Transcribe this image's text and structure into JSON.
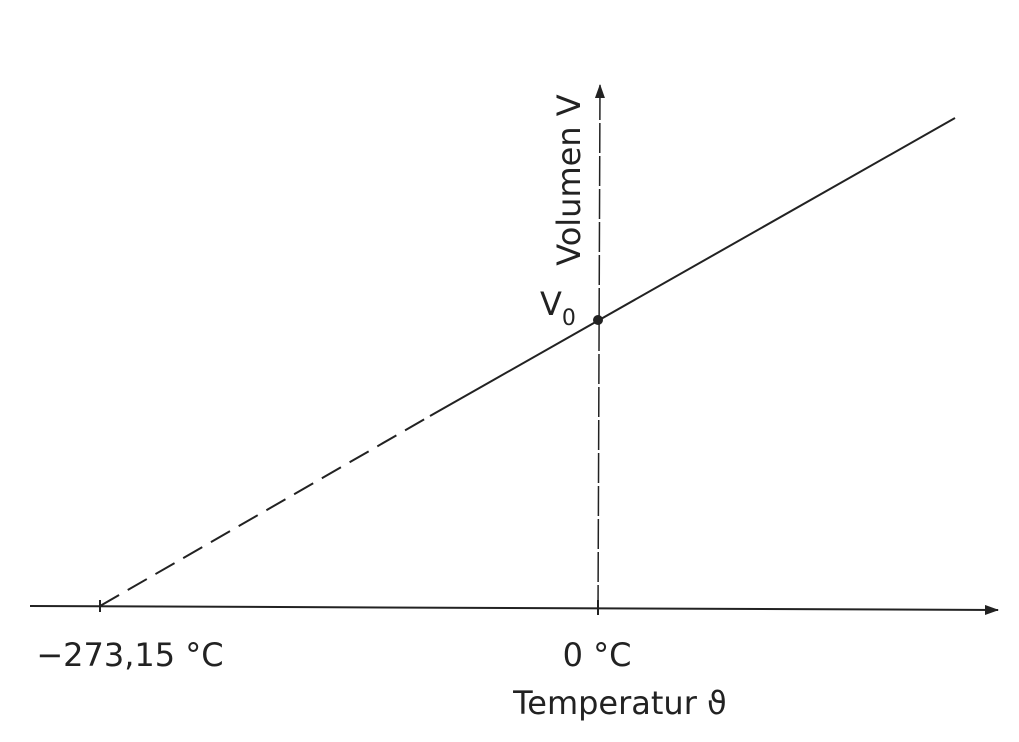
{
  "axes": {
    "y_label": "Volumen V",
    "x_label": "Temperatur ϑ",
    "x_ticks": [
      "−273,15 °C",
      "0 °C"
    ]
  },
  "point_label": {
    "text": "V",
    "subscript": "0"
  }
}
